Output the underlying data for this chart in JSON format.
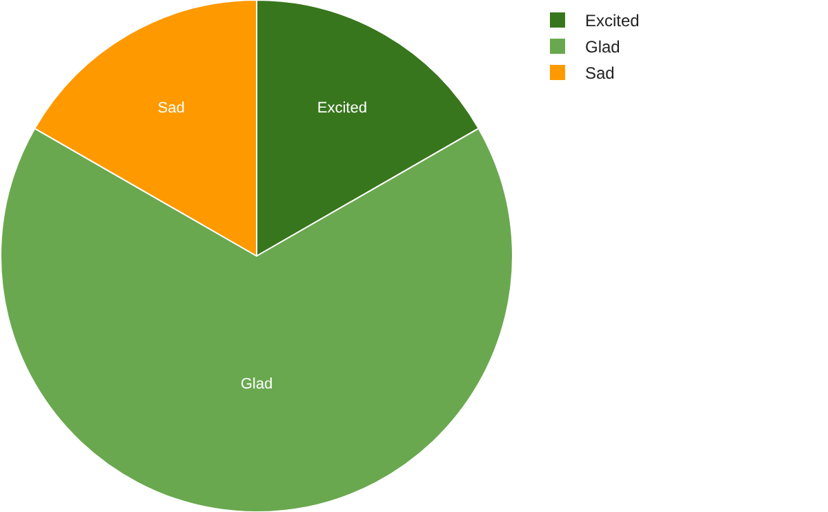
{
  "chart_data": {
    "type": "pie",
    "categories": [
      "Excited",
      "Glad",
      "Sad"
    ],
    "values": [
      16.7,
      66.6,
      16.7
    ],
    "colors": [
      "#38761d",
      "#6aa84f",
      "#ff9900"
    ],
    "legend": "top right"
  }
}
